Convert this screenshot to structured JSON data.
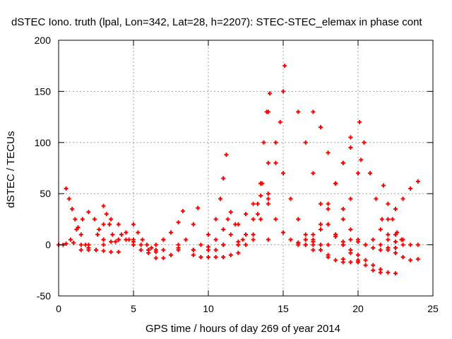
{
  "chart_data": {
    "type": "scatter",
    "title": "dSTEC Iono. truth (lpal, Lon=342, Lat=28, h=2207): STEC-STEC_elemax in phase cont",
    "xlabel": "GPS time / hours of day 269 of year 2014",
    "ylabel": "dSTEC  / TECUs",
    "xlim": [
      0,
      25
    ],
    "ylim": [
      -50,
      200
    ],
    "xticks": [
      0,
      5,
      10,
      15,
      20,
      25
    ],
    "yticks": [
      -50,
      0,
      50,
      100,
      150,
      200
    ],
    "grid": true,
    "marker": "+",
    "color": "#ff0000",
    "series": [
      {
        "x": [
          0.0,
          0.5,
          1.0,
          1.5,
          2.0,
          2.5,
          3.0,
          3.5,
          4.0
        ],
        "y": [
          0,
          1,
          2,
          0,
          -3,
          -5,
          -6,
          -7,
          -7
        ]
      },
      {
        "x": [
          0.5,
          0.7,
          0.9,
          1.1,
          1.3,
          1.5,
          1.8
        ],
        "y": [
          55,
          45,
          35,
          25,
          17,
          10,
          0
        ]
      },
      {
        "x": [
          0.3,
          0.8,
          1.2,
          1.6,
          2.0,
          2.4,
          2.7,
          3.0
        ],
        "y": [
          0,
          5,
          15,
          25,
          32,
          25,
          15,
          5
        ]
      },
      {
        "x": [
          1.5,
          2.0,
          2.5,
          3.0,
          3.5,
          4.0,
          4.5,
          5.0,
          5.5
        ],
        "y": [
          -5,
          -5,
          -5,
          0,
          3,
          5,
          5,
          3,
          0
        ]
      },
      {
        "x": [
          3.0,
          3.2,
          3.4,
          3.6,
          3.8
        ],
        "y": [
          38,
          30,
          20,
          10,
          3
        ]
      },
      {
        "x": [
          2.0,
          2.6,
          3.0,
          3.5,
          4.0,
          4.5,
          5.0
        ],
        "y": [
          0,
          10,
          20,
          25,
          20,
          12,
          5
        ]
      },
      {
        "x": [
          3.0,
          4.0,
          5.0,
          6.0,
          7.0,
          8.0
        ],
        "y": [
          5,
          5,
          0,
          -5,
          -5,
          -3
        ]
      },
      {
        "x": [
          4.2,
          4.7,
          5.0,
          5.5,
          6.0,
          6.5
        ],
        "y": [
          10,
          5,
          0,
          -5,
          -8,
          -7
        ]
      },
      {
        "x": [
          5.0,
          5.3,
          5.6,
          5.9,
          6.2,
          6.5
        ],
        "y": [
          20,
          12,
          5,
          0,
          -3,
          -5
        ]
      },
      {
        "x": [
          6.5,
          7.0,
          7.5,
          8.0,
          8.5,
          9.0,
          9.3
        ],
        "y": [
          -13,
          -13,
          -10,
          -5,
          5,
          20,
          36
        ]
      },
      {
        "x": [
          6.0,
          6.5,
          7.0,
          7.5,
          8.0,
          8.3
        ],
        "y": [
          -5,
          0,
          5,
          12,
          22,
          33
        ]
      },
      {
        "x": [
          7.0,
          8.0,
          9.0,
          10.0,
          11.0,
          12.0
        ],
        "y": [
          5,
          0,
          -5,
          -5,
          0,
          3
        ]
      },
      {
        "x": [
          9.0,
          9.5,
          10.0,
          10.5,
          11.0,
          11.5,
          12.0
        ],
        "y": [
          -10,
          -12,
          -12,
          -12,
          -12,
          -10,
          -8
        ]
      },
      {
        "x": [
          9.0,
          9.5,
          10.0,
          10.5,
          10.8,
          11.0,
          11.2
        ],
        "y": [
          -5,
          0,
          10,
          25,
          45,
          65,
          88
        ]
      },
      {
        "x": [
          10.0,
          10.5,
          11.0,
          11.3,
          11.5,
          11.8,
          12.3
        ],
        "y": [
          -2,
          5,
          15,
          25,
          32,
          20,
          5
        ]
      },
      {
        "x": [
          10.5,
          11.0,
          11.5,
          12.0,
          12.5,
          13.0,
          13.5,
          14.0
        ],
        "y": [
          -5,
          0,
          10,
          20,
          30,
          40,
          48,
          50
        ]
      },
      {
        "x": [
          12.0,
          12.5,
          13.0,
          13.3,
          13.6,
          14.0
        ],
        "y": [
          0,
          10,
          25,
          40,
          60,
          80
        ]
      },
      {
        "x": [
          13.0,
          13.3,
          13.5,
          13.7,
          13.9,
          14.1
        ],
        "y": [
          5,
          30,
          60,
          100,
          130,
          148
        ]
      },
      {
        "x": [
          12.5,
          13.0,
          13.5,
          14.0,
          14.5,
          14.8,
          15.0,
          15.1
        ],
        "y": [
          0,
          10,
          25,
          45,
          80,
          120,
          150,
          175
        ]
      },
      {
        "x": [
          14.0,
          14.5,
          15.0,
          15.5,
          16.0,
          16.5,
          17.0,
          17.5
        ],
        "y": [
          130,
          100,
          70,
          45,
          25,
          10,
          3,
          0
        ]
      },
      {
        "x": [
          13.5,
          14.0,
          14.5,
          15.0,
          15.5,
          16.0,
          16.5
        ],
        "y": [
          60,
          40,
          25,
          12,
          5,
          2,
          0
        ]
      },
      {
        "x": [
          12.0,
          14.0,
          16.0,
          17.0,
          18.0,
          19.0,
          20.0
        ],
        "y": [
          0,
          5,
          2,
          -5,
          -10,
          -14,
          -17
        ]
      },
      {
        "x": [
          16.0,
          16.5,
          17.0,
          17.5,
          18.0,
          18.5,
          19.0
        ],
        "y": [
          130,
          100,
          70,
          40,
          20,
          8,
          3
        ]
      },
      {
        "x": [
          17.0,
          17.5,
          18.0,
          18.5,
          19.0,
          19.5,
          20.0
        ],
        "y": [
          130,
          115,
          90,
          60,
          35,
          15,
          5
        ]
      },
      {
        "x": [
          16.5,
          17.0,
          17.5,
          18.0,
          18.5,
          19.0,
          19.5,
          20.0
        ],
        "y": [
          5,
          0,
          -5,
          -12,
          -15,
          -17,
          -17,
          -17
        ]
      },
      {
        "x": [
          16.0,
          16.5,
          17.0,
          17.5,
          18.0,
          18.5,
          19.0,
          19.5
        ],
        "y": [
          0,
          5,
          10,
          20,
          40,
          60,
          80,
          105
        ]
      },
      {
        "x": [
          16.5,
          17.0,
          17.5,
          18.0,
          18.5,
          19.0,
          19.5
        ],
        "y": [
          0,
          5,
          15,
          35,
          60,
          80,
          95
        ]
      },
      {
        "x": [
          18.0,
          18.5,
          19.0,
          19.5,
          20.0,
          20.5,
          21.0,
          21.5
        ],
        "y": [
          20,
          10,
          0,
          -8,
          -15,
          -20,
          -25,
          -27
        ]
      },
      {
        "x": [
          19.0,
          19.5,
          20.0,
          20.5,
          21.0,
          21.5,
          22.0,
          22.5
        ],
        "y": [
          0,
          -5,
          -10,
          -15,
          -20,
          -24,
          -27,
          -28
        ]
      },
      {
        "x": [
          18.0,
          18.5,
          19.0,
          19.5,
          20.0,
          20.2
        ],
        "y": [
          0,
          10,
          25,
          45,
          70,
          83
        ]
      },
      {
        "x": [
          20.1,
          20.4,
          20.8,
          21.2,
          21.6,
          22.0,
          22.5
        ],
        "y": [
          120,
          100,
          70,
          45,
          25,
          10,
          3
        ]
      },
      {
        "x": [
          19.5,
          20.0,
          20.5,
          21.0,
          21.5,
          22.0,
          22.5,
          23.0
        ],
        "y": [
          5,
          3,
          0,
          -3,
          -5,
          -5,
          -3,
          0
        ]
      },
      {
        "x": [
          21.7,
          22.0,
          22.3,
          22.6,
          22.9
        ],
        "y": [
          58,
          40,
          25,
          12,
          5
        ]
      },
      {
        "x": [
          20.5,
          21.0,
          21.5,
          22.0,
          22.5,
          23.0,
          23.5,
          24.0
        ],
        "y": [
          0,
          5,
          15,
          25,
          35,
          45,
          55,
          62
        ]
      },
      {
        "x": [
          21.5,
          22.0,
          22.5,
          23.0,
          23.5,
          24.0
        ],
        "y": [
          0,
          -3,
          -8,
          -12,
          -15,
          -14
        ]
      },
      {
        "x": [
          22.0,
          22.5,
          23.0,
          23.5,
          24.0
        ],
        "y": [
          5,
          10,
          5,
          0,
          0
        ]
      }
    ]
  }
}
